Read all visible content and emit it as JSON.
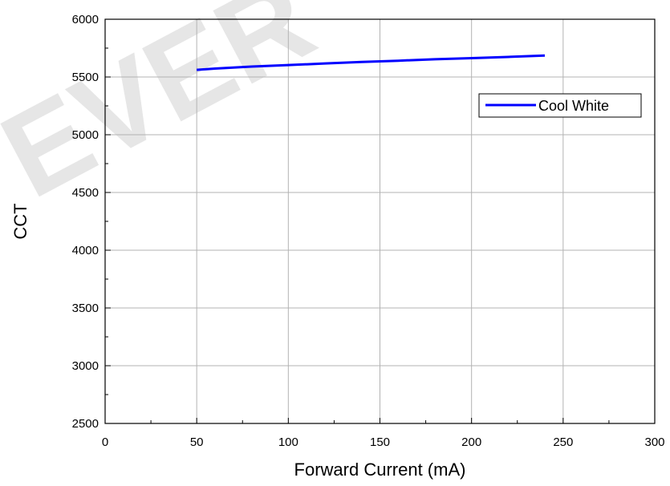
{
  "chart_data": {
    "type": "line",
    "xlabel": "Forward Current (mA)",
    "ylabel": "CCT",
    "xlim": [
      0,
      300
    ],
    "ylim": [
      2500,
      6000
    ],
    "xticks": [
      0,
      50,
      100,
      150,
      200,
      250,
      300
    ],
    "yticks": [
      2500,
      3000,
      3500,
      4000,
      4500,
      5000,
      5500,
      6000
    ],
    "grid": true,
    "legend_position": "top-right",
    "series": [
      {
        "name": "Cool White",
        "color": "#0000ff",
        "x": [
          50,
          60,
          80,
          100,
          120,
          140,
          160,
          180,
          200,
          220,
          240
        ],
        "y": [
          5562,
          5573,
          5590,
          5603,
          5617,
          5630,
          5641,
          5654,
          5663,
          5674,
          5686
        ]
      }
    ]
  },
  "watermark": "EVER"
}
